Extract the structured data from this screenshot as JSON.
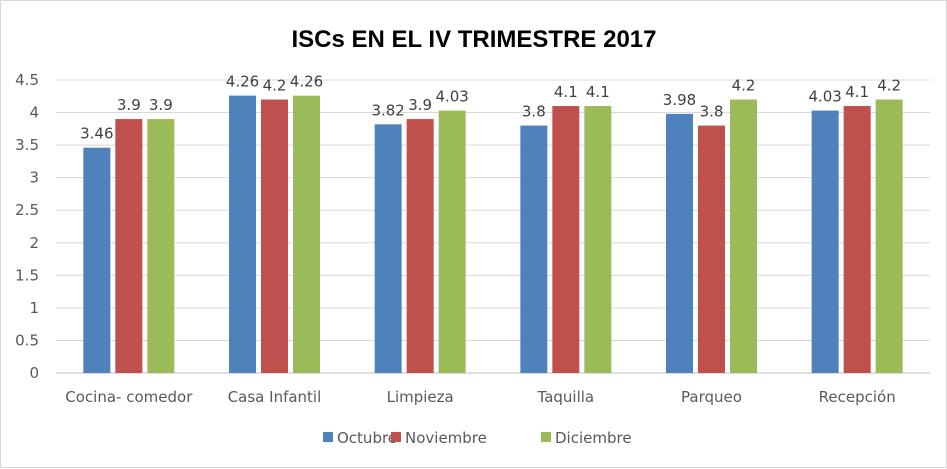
{
  "chart_data": {
    "type": "bar",
    "title": "ISCs  EN EL IV TRIMESTRE 2017",
    "categories": [
      "Cocina- comedor",
      "Casa Infantil",
      "Limpieza",
      "Taquilla",
      "Parqueo",
      "Recepción"
    ],
    "series": [
      {
        "name": "Octubre",
        "color": "#4f81bd",
        "values": [
          3.46,
          4.26,
          3.82,
          3.8,
          3.98,
          4.03
        ]
      },
      {
        "name": "Noviembre",
        "color": "#c0504d",
        "values": [
          3.9,
          4.2,
          3.9,
          4.1,
          3.8,
          4.1
        ]
      },
      {
        "name": "Diciembre",
        "color": "#9bbb59",
        "values": [
          3.9,
          4.26,
          4.03,
          4.1,
          4.2,
          4.2
        ]
      }
    ],
    "ylim": [
      0,
      4.5
    ],
    "yticks": [
      "0",
      "0.5",
      "1",
      "1.5",
      "2",
      "2.5",
      "3",
      "3.5",
      "4",
      "4.5"
    ],
    "grid": true,
    "legend": "bottom",
    "data_labels": true
  }
}
